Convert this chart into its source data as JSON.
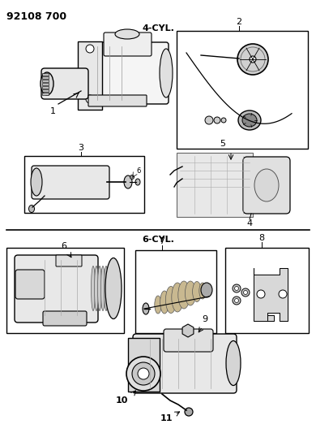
{
  "title": "92108 700",
  "section_4cyl": "4-CYL.",
  "section_6cyl": "6-CYL.",
  "bg_color": "#ffffff",
  "lc": "#000000",
  "gray1": "#cccccc",
  "gray2": "#aaaaaa",
  "gray3": "#888888",
  "figw": 3.9,
  "figh": 5.33,
  "dpi": 100
}
